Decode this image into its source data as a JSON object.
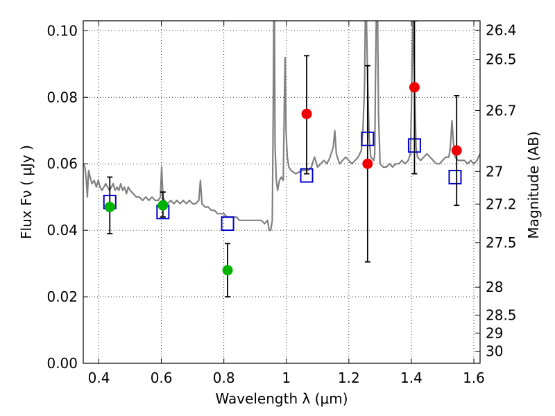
{
  "chart_data": {
    "type": "scatter",
    "xlabel": "Wavelength  λ (μm)",
    "ylabel": "Flux  Fν  ( μJy )",
    "y2label": "Magnitude (AB)",
    "xlim": [
      0.35,
      1.62
    ],
    "ylim": [
      0.0,
      0.103
    ],
    "grid": true,
    "x_ticks": [
      0.4,
      0.6,
      0.8,
      1.0,
      1.2,
      1.4,
      1.6
    ],
    "x_tick_labels": [
      "0.4",
      "0.6",
      "0.8",
      "1",
      "1.2",
      "1.4",
      "1.6"
    ],
    "y_ticks": [
      0.0,
      0.02,
      0.04,
      0.06,
      0.08,
      0.1
    ],
    "y_tick_labels": [
      "0.00",
      "0.02",
      "0.04",
      "0.06",
      "0.08",
      "0.10"
    ],
    "y2_ticks": [
      {
        "label": "26.4",
        "flux": 0.1002
      },
      {
        "label": "26.5",
        "flux": 0.0914
      },
      {
        "label": "26.7",
        "flux": 0.076
      },
      {
        "label": "27",
        "flux": 0.0577
      },
      {
        "label": "27.2",
        "flux": 0.0479
      },
      {
        "label": "27.5",
        "flux": 0.0363
      },
      {
        "label": "28",
        "flux": 0.0229
      },
      {
        "label": "28.5",
        "flux": 0.0145
      },
      {
        "label": "29",
        "flux": 0.0091
      },
      {
        "label": "30",
        "flux": 0.0036
      }
    ],
    "series": [
      {
        "kind": "line",
        "color": "#808080",
        "points": [
          [
            0.35,
            0.06
          ],
          [
            0.355,
            0.059
          ],
          [
            0.36,
            0.055
          ],
          [
            0.363,
            0.05
          ],
          [
            0.367,
            0.058
          ],
          [
            0.372,
            0.056
          ],
          [
            0.378,
            0.054
          ],
          [
            0.385,
            0.055
          ],
          [
            0.392,
            0.053
          ],
          [
            0.398,
            0.055
          ],
          [
            0.404,
            0.053
          ],
          [
            0.41,
            0.052
          ],
          [
            0.416,
            0.053
          ],
          [
            0.422,
            0.054
          ],
          [
            0.428,
            0.053
          ],
          [
            0.434,
            0.052
          ],
          [
            0.44,
            0.053
          ],
          [
            0.446,
            0.054
          ],
          [
            0.452,
            0.052
          ],
          [
            0.458,
            0.053
          ],
          [
            0.464,
            0.052
          ],
          [
            0.47,
            0.054
          ],
          [
            0.476,
            0.052
          ],
          [
            0.482,
            0.053
          ],
          [
            0.488,
            0.051
          ],
          [
            0.494,
            0.053
          ],
          [
            0.5,
            0.052
          ],
          [
            0.51,
            0.051
          ],
          [
            0.52,
            0.05
          ],
          [
            0.53,
            0.05
          ],
          [
            0.54,
            0.049
          ],
          [
            0.55,
            0.05
          ],
          [
            0.56,
            0.049
          ],
          [
            0.57,
            0.05
          ],
          [
            0.58,
            0.049
          ],
          [
            0.59,
            0.049
          ],
          [
            0.597,
            0.05
          ],
          [
            0.601,
            0.059
          ],
          [
            0.605,
            0.05
          ],
          [
            0.61,
            0.049
          ],
          [
            0.62,
            0.048
          ],
          [
            0.63,
            0.049
          ],
          [
            0.64,
            0.048
          ],
          [
            0.65,
            0.049
          ],
          [
            0.66,
            0.048
          ],
          [
            0.67,
            0.049
          ],
          [
            0.68,
            0.048
          ],
          [
            0.69,
            0.049
          ],
          [
            0.7,
            0.048
          ],
          [
            0.71,
            0.048
          ],
          [
            0.72,
            0.049
          ],
          [
            0.725,
            0.055
          ],
          [
            0.73,
            0.048
          ],
          [
            0.74,
            0.047
          ],
          [
            0.75,
            0.047
          ],
          [
            0.76,
            0.046
          ],
          [
            0.77,
            0.046
          ],
          [
            0.78,
            0.045
          ],
          [
            0.79,
            0.045
          ],
          [
            0.8,
            0.045
          ],
          [
            0.81,
            0.044
          ],
          [
            0.82,
            0.044
          ],
          [
            0.83,
            0.044
          ],
          [
            0.84,
            0.044
          ],
          [
            0.85,
            0.043
          ],
          [
            0.86,
            0.043
          ],
          [
            0.87,
            0.043
          ],
          [
            0.88,
            0.043
          ],
          [
            0.89,
            0.043
          ],
          [
            0.9,
            0.043
          ],
          [
            0.91,
            0.043
          ],
          [
            0.92,
            0.043
          ],
          [
            0.93,
            0.042
          ],
          [
            0.94,
            0.043
          ],
          [
            0.945,
            0.04
          ],
          [
            0.95,
            0.04
          ],
          [
            0.955,
            0.043
          ],
          [
            0.958,
            0.075
          ],
          [
            0.96,
            0.105
          ],
          [
            0.962,
            0.105
          ],
          [
            0.964,
            0.065
          ],
          [
            0.968,
            0.055
          ],
          [
            0.972,
            0.052
          ],
          [
            0.978,
            0.055
          ],
          [
            0.984,
            0.056
          ],
          [
            0.99,
            0.055
          ],
          [
            0.993,
            0.075
          ],
          [
            0.996,
            0.092
          ],
          [
            0.999,
            0.07
          ],
          [
            1.003,
            0.062
          ],
          [
            1.008,
            0.059
          ],
          [
            1.015,
            0.058
          ],
          [
            1.03,
            0.057
          ],
          [
            1.05,
            0.058
          ],
          [
            1.07,
            0.058
          ],
          [
            1.08,
            0.059
          ],
          [
            1.09,
            0.062
          ],
          [
            1.1,
            0.059
          ],
          [
            1.11,
            0.06
          ],
          [
            1.12,
            0.061
          ],
          [
            1.13,
            0.06
          ],
          [
            1.14,
            0.062
          ],
          [
            1.15,
            0.065
          ],
          [
            1.155,
            0.07
          ],
          [
            1.16,
            0.063
          ],
          [
            1.17,
            0.06
          ],
          [
            1.18,
            0.061
          ],
          [
            1.19,
            0.062
          ],
          [
            1.2,
            0.061
          ],
          [
            1.21,
            0.06
          ],
          [
            1.22,
            0.061
          ],
          [
            1.23,
            0.062
          ],
          [
            1.24,
            0.064
          ],
          [
            1.245,
            0.07
          ],
          [
            1.25,
            0.083
          ],
          [
            1.253,
            0.105
          ],
          [
            1.256,
            0.105
          ],
          [
            1.26,
            0.085
          ],
          [
            1.265,
            0.068
          ],
          [
            1.27,
            0.062
          ],
          [
            1.28,
            0.061
          ],
          [
            1.283,
            0.063
          ],
          [
            1.285,
            0.083
          ],
          [
            1.288,
            0.105
          ],
          [
            1.292,
            0.105
          ],
          [
            1.295,
            0.075
          ],
          [
            1.3,
            0.06
          ],
          [
            1.31,
            0.059
          ],
          [
            1.32,
            0.059
          ],
          [
            1.33,
            0.06
          ],
          [
            1.34,
            0.059
          ],
          [
            1.35,
            0.06
          ],
          [
            1.36,
            0.06
          ],
          [
            1.37,
            0.061
          ],
          [
            1.38,
            0.06
          ],
          [
            1.39,
            0.061
          ],
          [
            1.397,
            0.063
          ],
          [
            1.4,
            0.075
          ],
          [
            1.405,
            0.105
          ],
          [
            1.41,
            0.085
          ],
          [
            1.415,
            0.065
          ],
          [
            1.42,
            0.062
          ],
          [
            1.43,
            0.061
          ],
          [
            1.44,
            0.062
          ],
          [
            1.45,
            0.063
          ],
          [
            1.46,
            0.062
          ],
          [
            1.47,
            0.061
          ],
          [
            1.48,
            0.06
          ],
          [
            1.49,
            0.06
          ],
          [
            1.5,
            0.061
          ],
          [
            1.51,
            0.062
          ],
          [
            1.52,
            0.062
          ],
          [
            1.525,
            0.065
          ],
          [
            1.53,
            0.073
          ],
          [
            1.535,
            0.066
          ],
          [
            1.54,
            0.062
          ],
          [
            1.55,
            0.061
          ],
          [
            1.56,
            0.061
          ],
          [
            1.57,
            0.061
          ],
          [
            1.58,
            0.06
          ],
          [
            1.59,
            0.061
          ],
          [
            1.6,
            0.06
          ],
          [
            1.61,
            0.061
          ],
          [
            1.615,
            0.062
          ],
          [
            1.62,
            0.063
          ]
        ]
      },
      {
        "kind": "squares",
        "color": "#0000cc",
        "points": [
          [
            0.435,
            0.0485
          ],
          [
            0.605,
            0.0455
          ],
          [
            0.812,
            0.042
          ],
          [
            1.065,
            0.0565
          ],
          [
            1.26,
            0.0675
          ],
          [
            1.41,
            0.0655
          ],
          [
            1.54,
            0.056
          ]
        ]
      },
      {
        "kind": "circles_errorbars",
        "color": "#00b300",
        "points": [
          [
            0.435,
            0.047,
            0.039,
            0.056
          ],
          [
            0.605,
            0.0475,
            0.044,
            0.0515
          ],
          [
            0.812,
            0.028,
            0.02,
            0.036
          ]
        ]
      },
      {
        "kind": "circles_errorbars",
        "color": "#ee0000",
        "points": [
          [
            1.065,
            0.075,
            0.057,
            0.0925
          ],
          [
            1.26,
            0.06,
            0.0305,
            0.0895
          ],
          [
            1.41,
            0.083,
            0.057,
            0.103
          ],
          [
            1.545,
            0.064,
            0.0475,
            0.0805
          ]
        ]
      }
    ]
  }
}
